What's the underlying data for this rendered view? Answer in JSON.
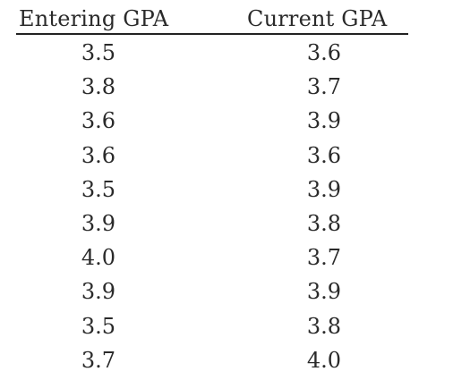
{
  "table": {
    "headers": [
      "Entering GPA",
      "Current GPA"
    ],
    "rows": [
      [
        "3.5",
        "3.6"
      ],
      [
        "3.8",
        "3.7"
      ],
      [
        "3.6",
        "3.9"
      ],
      [
        "3.6",
        "3.6"
      ],
      [
        "3.5",
        "3.9"
      ],
      [
        "3.9",
        "3.8"
      ],
      [
        "4.0",
        "3.7"
      ],
      [
        "3.9",
        "3.9"
      ],
      [
        "3.5",
        "3.8"
      ],
      [
        "3.7",
        "4.0"
      ]
    ]
  },
  "chart_data": {
    "type": "table",
    "columns": [
      "Entering GPA",
      "Current GPA"
    ],
    "rows": [
      [
        3.5,
        3.6
      ],
      [
        3.8,
        3.7
      ],
      [
        3.6,
        3.9
      ],
      [
        3.6,
        3.6
      ],
      [
        3.5,
        3.9
      ],
      [
        3.9,
        3.8
      ],
      [
        4.0,
        3.7
      ],
      [
        3.9,
        3.9
      ],
      [
        3.5,
        3.8
      ],
      [
        3.7,
        4.0
      ]
    ]
  }
}
